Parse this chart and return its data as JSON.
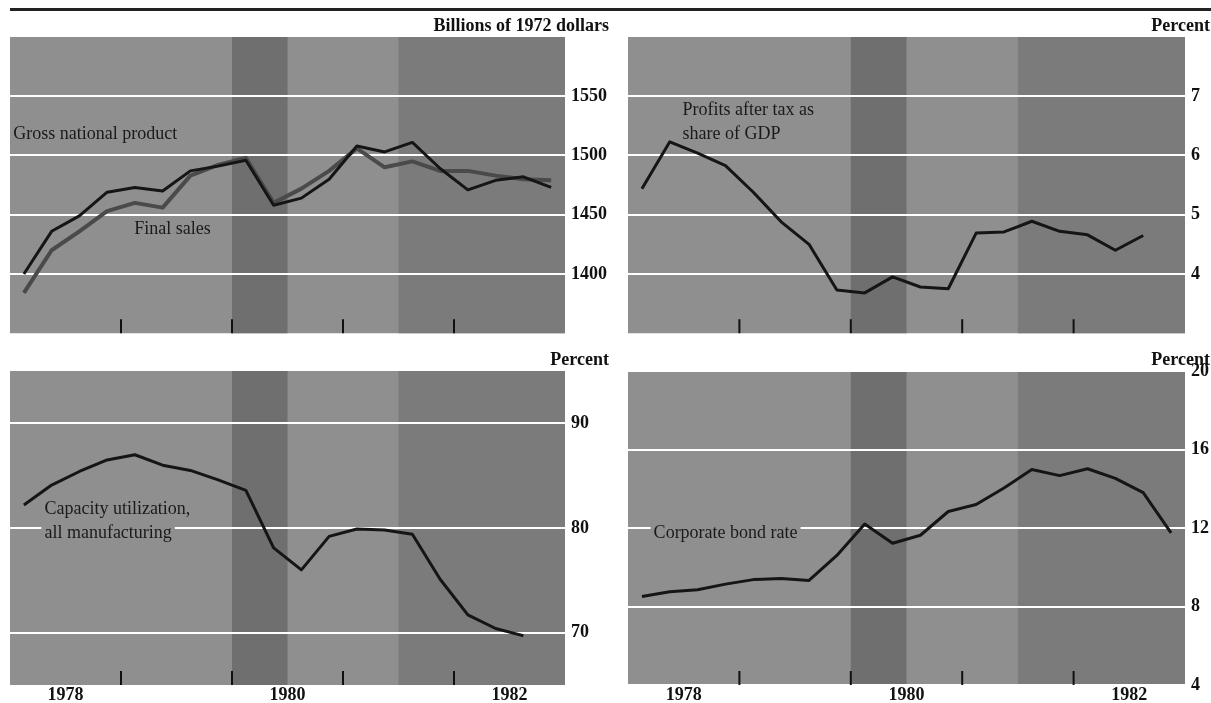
{
  "chart_data": [
    {
      "type": "line",
      "ylabel": "Billions of 1972 dollars",
      "x": [
        1978.125,
        1978.375,
        1978.625,
        1978.875,
        1979.125,
        1979.375,
        1979.625,
        1979.875,
        1980.125,
        1980.375,
        1980.625,
        1980.875,
        1981.125,
        1981.375,
        1981.625,
        1981.875,
        1982.125,
        1982.375,
        1982.625,
        1982.875
      ],
      "series": [
        {
          "name": "Gross national product",
          "color": "#151515",
          "values": [
            1400,
            1436,
            1449,
            1469,
            1473,
            1470,
            1487,
            1491,
            1496,
            1458,
            1464,
            1480,
            1508,
            1503,
            1511,
            1489,
            1471,
            1479,
            1482,
            1473
          ]
        },
        {
          "name": "Final sales",
          "color": "#4a4a4a",
          "values": [
            1384,
            1420,
            1436,
            1453,
            1460,
            1456,
            1483,
            1492,
            1498,
            1460,
            1472,
            1487,
            1506,
            1490,
            1495,
            1487,
            1487,
            1483,
            1480,
            1479
          ]
        }
      ],
      "xlim": [
        1978,
        1983
      ],
      "xticks": [
        {
          "value": 1979,
          "label": null
        },
        {
          "value": 1980,
          "label": null
        },
        {
          "value": 1981,
          "label": null
        },
        {
          "value": 1982,
          "label": null
        }
      ],
      "ylim": [
        1350,
        1600
      ],
      "yticks": [
        1400,
        1450,
        1500,
        1550
      ],
      "grid": "y",
      "tick_labels": "y",
      "bands": [
        {
          "axis": "x",
          "from": 1980,
          "to": 1980.5,
          "color": "#6f6f6f"
        },
        {
          "axis": "x",
          "from": 1981.5,
          "to": 1983,
          "color": "#7b7b7b"
        }
      ]
    },
    {
      "type": "line",
      "ylabel": "Percent",
      "x": [
        1978.125,
        1978.375,
        1978.625,
        1978.875,
        1979.125,
        1979.375,
        1979.625,
        1979.875,
        1980.125,
        1980.375,
        1980.625,
        1980.875,
        1981.125,
        1981.375,
        1981.625,
        1981.875,
        1982.125,
        1982.375,
        1982.625
      ],
      "series": [
        {
          "name": "Profits after tax as share of GDP",
          "color": "#151515",
          "values": [
            5.44,
            6.23,
            6.04,
            5.83,
            5.38,
            4.88,
            4.5,
            3.73,
            3.68,
            3.95,
            3.78,
            3.75,
            4.69,
            4.71,
            4.89,
            4.72,
            4.66,
            4.4,
            4.65
          ]
        }
      ],
      "xlim": [
        1978,
        1983
      ],
      "xticks": [
        {
          "value": 1979,
          "label": null
        },
        {
          "value": 1980,
          "label": null
        },
        {
          "value": 1981,
          "label": null
        },
        {
          "value": 1982,
          "label": null
        }
      ],
      "ylim": [
        3,
        8
      ],
      "yticks": [
        4,
        5,
        6,
        7
      ],
      "grid": "y",
      "tick_labels": "y",
      "bands": [
        {
          "axis": "x",
          "from": 1980,
          "to": 1980.5,
          "color": "#6f6f6f"
        },
        {
          "axis": "x",
          "from": 1981.5,
          "to": 1983,
          "color": "#7b7b7b"
        }
      ]
    },
    {
      "type": "line",
      "ylabel": "Percent",
      "x": [
        1978.125,
        1978.375,
        1978.625,
        1978.875,
        1979.125,
        1979.375,
        1979.625,
        1979.875,
        1980.125,
        1980.375,
        1980.625,
        1980.875,
        1981.125,
        1981.375,
        1981.625,
        1981.875,
        1982.125,
        1982.375,
        1982.625
      ],
      "series": [
        {
          "name": "Capacity utilization, all manufacturing",
          "color": "#151515",
          "values": [
            82.2,
            84.1,
            85.4,
            86.5,
            87.0,
            86.0,
            85.5,
            84.6,
            83.6,
            78.1,
            76.0,
            79.2,
            79.9,
            79.8,
            79.4,
            75.1,
            71.7,
            70.4,
            69.7
          ]
        }
      ],
      "xlim": [
        1978,
        1983
      ],
      "xticks": [
        {
          "value": 1978.5,
          "label": "1978"
        },
        {
          "value": 1979,
          "label": null
        },
        {
          "value": 1980,
          "label": null
        },
        {
          "value": 1980.5,
          "label": "1980"
        },
        {
          "value": 1981,
          "label": null
        },
        {
          "value": 1982,
          "label": null
        },
        {
          "value": 1982.5,
          "label": "1982"
        }
      ],
      "ylim": [
        65,
        95
      ],
      "yticks": [
        70,
        80,
        90
      ],
      "grid": "y",
      "bands": [
        {
          "axis": "x",
          "from": 1980,
          "to": 1980.5,
          "color": "#6f6f6f"
        },
        {
          "axis": "x",
          "from": 1981.5,
          "to": 1983,
          "color": "#7b7b7b"
        }
      ]
    },
    {
      "type": "line",
      "ylabel": "Percent",
      "x": [
        1978.125,
        1978.375,
        1978.625,
        1978.875,
        1979.125,
        1979.375,
        1979.625,
        1979.875,
        1980.125,
        1980.375,
        1980.625,
        1980.875,
        1981.125,
        1981.375,
        1981.625,
        1981.875,
        1982.125,
        1982.375,
        1982.625,
        1982.875
      ],
      "series": [
        {
          "name": "Corporate bond rate",
          "color": "#151515",
          "values": [
            8.51,
            8.75,
            8.85,
            9.14,
            9.37,
            9.43,
            9.33,
            10.6,
            12.2,
            11.22,
            11.63,
            12.84,
            13.2,
            14.04,
            14.98,
            14.67,
            15.02,
            14.53,
            13.8,
            11.75
          ]
        }
      ],
      "xlim": [
        1978,
        1983
      ],
      "xticks": [
        {
          "value": 1978.5,
          "label": "1978"
        },
        {
          "value": 1979,
          "label": null
        },
        {
          "value": 1980,
          "label": null
        },
        {
          "value": 1980.5,
          "label": "1980"
        },
        {
          "value": 1981,
          "label": null
        },
        {
          "value": 1982,
          "label": null
        },
        {
          "value": 1982.5,
          "label": "1982"
        }
      ],
      "ylim": [
        4,
        20
      ],
      "yticks": [
        4,
        8,
        12,
        16,
        20
      ],
      "grid": "y",
      "bands": [
        {
          "axis": "x",
          "from": 1980,
          "to": 1980.5,
          "color": "#6f6f6f"
        },
        {
          "axis": "x",
          "from": 1981.5,
          "to": 1983,
          "color": "#7b7b7b"
        }
      ]
    }
  ]
}
